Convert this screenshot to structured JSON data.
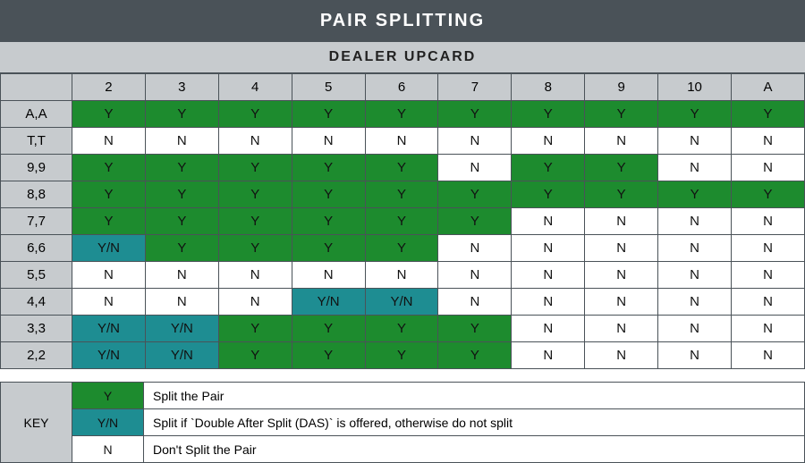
{
  "title": "PAIR SPLITTING",
  "subtitle": "DEALER UPCARD",
  "colors": {
    "title_bg": "#4a5258",
    "header_bg": "#c7cbce",
    "y_bg": "#1d8b2e",
    "yn_bg": "#1e8d92",
    "n_bg": "#ffffff",
    "border": "#4a5258",
    "title_text": "#ffffff",
    "cell_text": "#111111"
  },
  "typography": {
    "title_fontsize": 20,
    "subtitle_fontsize": 16,
    "cell_fontsize": 15,
    "key_fontsize": 14,
    "title_weight": 700,
    "title_letterspacing": 2
  },
  "table": {
    "type": "table",
    "columns": [
      "2",
      "3",
      "4",
      "5",
      "6",
      "7",
      "8",
      "9",
      "10",
      "A"
    ],
    "row_labels": [
      "A,A",
      "T,T",
      "9,9",
      "8,8",
      "7,7",
      "6,6",
      "5,5",
      "4,4",
      "3,3",
      "2,2"
    ],
    "cells": [
      [
        "Y",
        "Y",
        "Y",
        "Y",
        "Y",
        "Y",
        "Y",
        "Y",
        "Y",
        "Y"
      ],
      [
        "N",
        "N",
        "N",
        "N",
        "N",
        "N",
        "N",
        "N",
        "N",
        "N"
      ],
      [
        "Y",
        "Y",
        "Y",
        "Y",
        "Y",
        "N",
        "Y",
        "Y",
        "N",
        "N"
      ],
      [
        "Y",
        "Y",
        "Y",
        "Y",
        "Y",
        "Y",
        "Y",
        "Y",
        "Y",
        "Y"
      ],
      [
        "Y",
        "Y",
        "Y",
        "Y",
        "Y",
        "Y",
        "N",
        "N",
        "N",
        "N"
      ],
      [
        "Y/N",
        "Y",
        "Y",
        "Y",
        "Y",
        "N",
        "N",
        "N",
        "N",
        "N"
      ],
      [
        "N",
        "N",
        "N",
        "N",
        "N",
        "N",
        "N",
        "N",
        "N",
        "N"
      ],
      [
        "N",
        "N",
        "N",
        "Y/N",
        "Y/N",
        "N",
        "N",
        "N",
        "N",
        "N"
      ],
      [
        "Y/N",
        "Y/N",
        "Y",
        "Y",
        "Y",
        "Y",
        "N",
        "N",
        "N",
        "N"
      ],
      [
        "Y/N",
        "Y/N",
        "Y",
        "Y",
        "Y",
        "Y",
        "N",
        "N",
        "N",
        "N"
      ]
    ],
    "cell_states": {
      "Y": {
        "label": "Y",
        "class": "cell-y"
      },
      "Y/N": {
        "label": "Y/N",
        "class": "cell-yn"
      },
      "N": {
        "label": "N",
        "class": "cell-n"
      }
    }
  },
  "key": {
    "label": "KEY",
    "rows": [
      {
        "swatch_state": "Y",
        "desc": "Split the Pair"
      },
      {
        "swatch_state": "Y/N",
        "desc": "Split if `Double After Split (DAS)` is offered, otherwise do not split"
      },
      {
        "swatch_state": "N",
        "desc": "Don't Split the Pair"
      }
    ]
  }
}
